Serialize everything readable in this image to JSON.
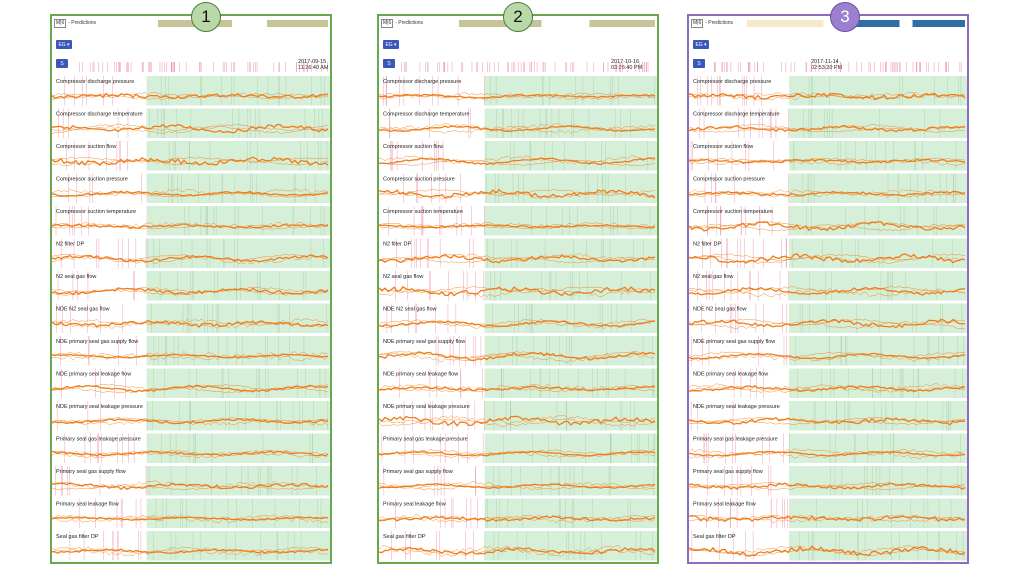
{
  "panels": [
    {
      "badge": "1",
      "topbar": {
        "mh": "M|6",
        "title": "- Predictions"
      },
      "eg_label": "EG ▾",
      "s_label": "S",
      "timestamp": [
        "2017-09-15",
        "11:26:40 AM"
      ],
      "highlight": [
        0.34,
        1.0
      ],
      "colors": {
        "border": "#6aa84f",
        "strip": "#c8c49a"
      },
      "rows": [
        "Compressor discharge pressure",
        "Compressor discharge temperature",
        "Compressor suction flow",
        "Compressor suction pressure",
        "Compressor suction temperature",
        "N2 filter DP",
        "N2 seal gas flow",
        "NDE N2 seal gas flow",
        "NDE primary seal gas supply flow",
        "NDE primary seal leakage flow",
        "NDE primary seal leakage pressure",
        "Primary seal gas leakage pressure",
        "Primary seal gas supply flow",
        "Primary seal leakage flow",
        "Seal gas filter DP"
      ]
    },
    {
      "badge": "2",
      "topbar": {
        "mh": "M|6",
        "title": "- Predictions"
      },
      "eg_label": "EG ▾",
      "s_label": "S",
      "timestamp": [
        "2017-10-16",
        "03:26:40 PM"
      ],
      "highlight": [
        0.38,
        1.0
      ],
      "colors": {
        "border": "#6aa84f",
        "strip": "#c8c49a"
      },
      "rows": [
        "Compressor discharge pressure",
        "Compressor discharge temperature",
        "Compressor suction flow",
        "Compressor suction pressure",
        "Compressor suction temperature",
        "N2 filter DP",
        "N2 seal gas flow",
        "NDE N2 seal gas flow",
        "NDE primary seal gas supply flow",
        "NDE primary seal leakage flow",
        "NDE primary seal leakage pressure",
        "Primary seal gas leakage pressure",
        "Primary seal gas supply flow",
        "Primary seal leakage flow",
        "Seal gas filter DP"
      ]
    },
    {
      "badge": "3",
      "topbar": {
        "mh": "M|6",
        "title": "- Predictions"
      },
      "eg_label": "EG ▾",
      "s_label": "S",
      "timestamp": [
        "2017-11-14",
        "02:53:20 PM"
      ],
      "highlight": [
        0.36,
        1.0
      ],
      "colors": {
        "border": "#8e6cc0",
        "strip": "#2f6fa6"
      },
      "rows": [
        "Compressor discharge pressure",
        "Compressor discharge temperature",
        "Compressor suction flow",
        "Compressor suction pressure",
        "Compressor suction temperature",
        "N2 filter DP",
        "N2 seal gas flow",
        "NDE N2 seal gas flow",
        "NDE primary seal gas supply flow",
        "NDE primary seal leakage flow",
        "NDE primary seal leakage pressure",
        "Primary seal gas leakage pressure",
        "Primary seal gas supply flow",
        "Primary seal leakage flow",
        "Seal gas filter DP"
      ]
    }
  ],
  "colors": {
    "trace": "#ef7d1a",
    "highlight": "#d6efd8",
    "marker": "#e87a9a"
  }
}
